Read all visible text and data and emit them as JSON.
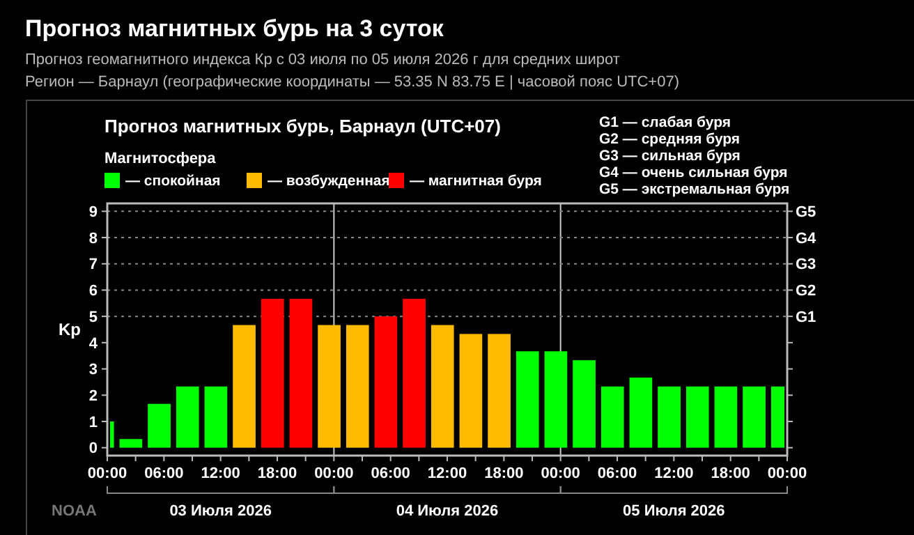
{
  "chart_data": {
    "type": "bar",
    "title": "Прогноз магнитных бурь на 3 суток",
    "subtitle": "Прогноз геомагнитного индекса Кр с 03 июля по 05 июля 2026 г для средних широт",
    "annotations": [
      "Регион — Барнаул (географические координаты — 53.35 N 83.75 E | часовой пояс UTC+07)",
      "Прогноз магнитных бурь, Барнаул (UTC+07)",
      "G1 — слабая буря",
      "G2 — средняя буря",
      "G3 — сильная буря",
      "G4 — очень сильная буря",
      "G5 — экстремальная буря",
      "03 Июля 2026",
      "04 Июля 2026",
      "05 Июля 2026",
      "NOAA"
    ],
    "ylabel": "Kp",
    "legend_title": "Магнитосфера",
    "legend": "top left",
    "x": [
      "2026-07-03T00:30",
      "2026-07-03T02:30",
      "2026-07-03T05:30",
      "2026-07-03T08:30",
      "2026-07-03T11:30",
      "2026-07-03T14:30",
      "2026-07-03T17:30",
      "2026-07-03T20:30",
      "2026-07-03T23:30",
      "2026-07-04T02:30",
      "2026-07-04T05:30",
      "2026-07-04T08:30",
      "2026-07-04T11:30",
      "2026-07-04T14:30",
      "2026-07-04T17:30",
      "2026-07-04T20:30",
      "2026-07-04T23:30",
      "2026-07-05T02:30",
      "2026-07-05T05:30",
      "2026-07-05T08:30",
      "2026-07-05T11:30",
      "2026-07-05T14:30",
      "2026-07-05T17:30",
      "2026-07-05T20:30",
      "2026-07-05T23:00"
    ],
    "series": [
      {
        "name": "— спокойная",
        "color": "#00ff00",
        "values": [
          1.0,
          0.33,
          1.67,
          2.33,
          2.33,
          null,
          null,
          null,
          null,
          null,
          null,
          null,
          null,
          null,
          null,
          3.67,
          3.67,
          3.33,
          2.33,
          2.67,
          2.33,
          2.33,
          2.33,
          2.33,
          2.33
        ]
      },
      {
        "name": "— возбужденная",
        "color": "#ffbb00",
        "values": [
          null,
          null,
          null,
          null,
          null,
          4.67,
          null,
          null,
          4.67,
          4.67,
          null,
          null,
          4.67,
          4.33,
          4.33,
          null,
          null,
          null,
          null,
          null,
          null,
          null,
          null,
          null,
          null
        ]
      },
      {
        "name": "— магнитная буря",
        "color": "#ff0000",
        "values": [
          null,
          null,
          null,
          null,
          null,
          null,
          5.67,
          5.67,
          null,
          null,
          5.0,
          5.67,
          null,
          null,
          null,
          null,
          null,
          null,
          null,
          null,
          null,
          null,
          null,
          null,
          null
        ]
      }
    ],
    "xlim": [
      "2026-07-03T00:00",
      "2026-07-06T00:00"
    ],
    "xticks": [
      {
        "value": "2026-07-03T00:00",
        "label": "00:00"
      },
      {
        "value": "2026-07-03T03:00",
        "label": null
      },
      {
        "value": "2026-07-03T06:00",
        "label": "06:00"
      },
      {
        "value": "2026-07-03T09:00",
        "label": null
      },
      {
        "value": "2026-07-03T12:00",
        "label": "12:00"
      },
      {
        "value": "2026-07-03T15:00",
        "label": null
      },
      {
        "value": "2026-07-03T18:00",
        "label": "18:00"
      },
      {
        "value": "2026-07-03T21:00",
        "label": null
      },
      {
        "value": "2026-07-04T00:00",
        "label": "00:00"
      },
      {
        "value": "2026-07-04T03:00",
        "label": null
      },
      {
        "value": "2026-07-04T06:00",
        "label": "06:00"
      },
      {
        "value": "2026-07-04T09:00",
        "label": null
      },
      {
        "value": "2026-07-04T12:00",
        "label": "12:00"
      },
      {
        "value": "2026-07-04T15:00",
        "label": null
      },
      {
        "value": "2026-07-04T18:00",
        "label": "18:00"
      },
      {
        "value": "2026-07-04T21:00",
        "label": null
      },
      {
        "value": "2026-07-05T00:00",
        "label": "00:00"
      },
      {
        "value": "2026-07-05T03:00",
        "label": null
      },
      {
        "value": "2026-07-05T06:00",
        "label": "06:00"
      },
      {
        "value": "2026-07-05T09:00",
        "label": null
      },
      {
        "value": "2026-07-05T12:00",
        "label": "12:00"
      },
      {
        "value": "2026-07-05T15:00",
        "label": null
      },
      {
        "value": "2026-07-05T18:00",
        "label": "18:00"
      },
      {
        "value": "2026-07-05T21:00",
        "label": null
      },
      {
        "value": "2026-07-06T00:00",
        "label": "00:00"
      }
    ],
    "ylim": [
      -0.3,
      9.3
    ],
    "yticks": [
      0,
      1,
      2,
      3,
      4,
      5,
      6,
      7,
      8,
      9
    ],
    "ref_lines": [
      {
        "axis": "x",
        "value": "2026-07-04T00:00",
        "color": "#cccccc",
        "line_style": "solid"
      },
      {
        "axis": "x",
        "value": "2026-07-05T00:00",
        "color": "#cccccc",
        "line_style": "solid"
      },
      {
        "axis": "y",
        "value": 5,
        "label": "G1",
        "color": "#888888",
        "line_style": "dotted"
      },
      {
        "axis": "y",
        "value": 6,
        "label": "G2",
        "color": "#888888",
        "line_style": "dotted"
      },
      {
        "axis": "y",
        "value": 7,
        "label": "G3",
        "color": "#888888",
        "line_style": "dotted"
      },
      {
        "axis": "y",
        "value": 8,
        "label": "G4",
        "color": "#888888",
        "line_style": "dotted"
      },
      {
        "axis": "y",
        "value": 9,
        "label": "G5",
        "color": "#888888",
        "line_style": "dotted"
      }
    ]
  }
}
